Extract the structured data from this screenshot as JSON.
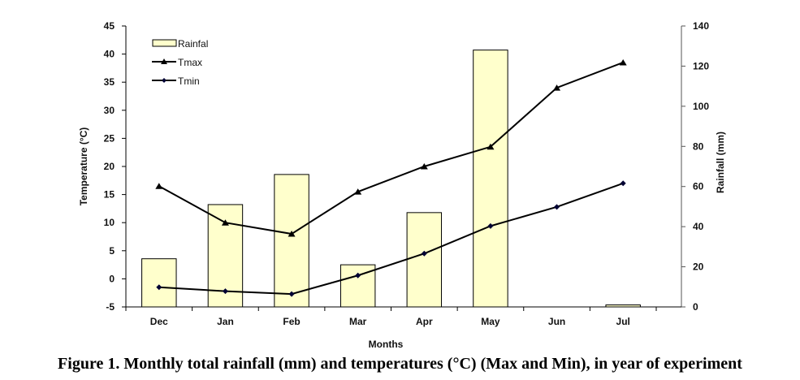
{
  "caption": "Figure 1. Monthly total rainfall (mm) and temperatures (°C) (Max and Min), in year of experiment",
  "chart_data": {
    "type": "bar+line",
    "title": "",
    "categories": [
      "Dec",
      "Jan",
      "Feb",
      "Mar",
      "Apr",
      "May",
      "Jun",
      "Jul"
    ],
    "xlabel": "Months",
    "ylabel_left": "Temperature  (°C)",
    "ylabel_right": "Rainfall (mm)",
    "ylim_left": [
      -5,
      45
    ],
    "yticks_left": [
      -5,
      0,
      5,
      10,
      15,
      20,
      25,
      30,
      35,
      40,
      45
    ],
    "ylim_right": [
      0,
      140
    ],
    "yticks_right": [
      0,
      20,
      40,
      60,
      80,
      100,
      120,
      140
    ],
    "grid": false,
    "legend_position": "top-left",
    "series": [
      {
        "name": "Rainfal",
        "type": "bar",
        "axis": "right",
        "color": "#ffffcc",
        "values": [
          24,
          51,
          66,
          21,
          47,
          128,
          0,
          1
        ]
      },
      {
        "name": "Tmax",
        "type": "line",
        "axis": "left",
        "marker": "triangle",
        "color": "#000000",
        "values": [
          16.5,
          10,
          8,
          15.5,
          20,
          23.5,
          34,
          38.5
        ]
      },
      {
        "name": "Tmin",
        "type": "line",
        "axis": "left",
        "marker": "diamond",
        "color": "#000033",
        "values": [
          -1.5,
          -2.2,
          -2.7,
          0.6,
          4.5,
          9.4,
          12.8,
          17
        ]
      }
    ]
  }
}
